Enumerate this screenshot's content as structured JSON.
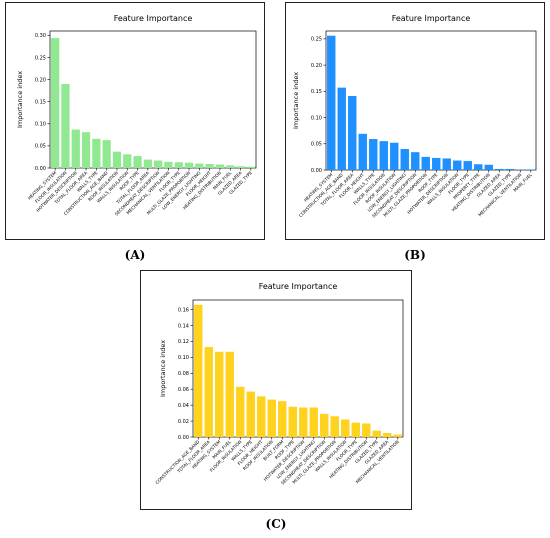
{
  "chart_data": [
    {
      "panel": "A",
      "type": "bar",
      "title": "Feature Importance",
      "ylabel": "Importance index",
      "color": "#90e890",
      "ylim": [
        0,
        0.31
      ],
      "yticks": [
        "0.00",
        "0.05",
        "0.10",
        "0.15",
        "0.20",
        "0.25",
        "0.30"
      ],
      "categories": [
        "HEATING_SYSTEM",
        "FLOOR_INSULATION",
        "HOTWATER_DESCRIPTION",
        "TOTAL_FLOOR_AREA",
        "WALLS_TYPE",
        "CONSTRUCTION_AGE_BAND",
        "ROOF_INSULATION",
        "WALLS_INSULATION",
        "ROOF_TYPE",
        "TOTAL_FLOOR_AREA",
        "SECONDHEAT_DESCRIPTION",
        "MECHANICAL_VENTILATION",
        "FLOOR_TYPE",
        "MULTI_GLAZE_PROPORTION",
        "LOW_ENERGY_LIGHTING",
        "FLOOR_HEIGHT",
        "HEATING_DISTRIBUTION",
        "MAIN_FUEL",
        "GLAZED_AREA",
        "GLAZED_TYPE"
      ],
      "values": [
        0.294,
        0.19,
        0.087,
        0.081,
        0.066,
        0.063,
        0.037,
        0.031,
        0.027,
        0.019,
        0.017,
        0.014,
        0.013,
        0.012,
        0.01,
        0.009,
        0.008,
        0.006,
        0.004,
        0.003
      ]
    },
    {
      "panel": "B",
      "type": "bar",
      "title": "Feature Importance",
      "ylabel": "Importance index",
      "color": "#1e90ff",
      "ylim": [
        0,
        0.265
      ],
      "yticks": [
        "0.00",
        "0.05",
        "0.10",
        "0.15",
        "0.20",
        "0.25"
      ],
      "categories": [
        "HEATING_SYSTEM",
        "CONSTRUCTION_AGE_BAND",
        "TOTAL_FLOOR_AREA",
        "FLOOR_HEIGHT",
        "WALLS_TYPE",
        "FLOOR_INSULATION",
        "ROOF_INSULATION",
        "LOW_ENERGY_LIGHTING",
        "SECONDHEAT_DESCRIPTION",
        "MULTI_GLAZE_PROPORTION",
        "ROOF_TYPE",
        "HOTWATER_DESCRIPTION",
        "WALLS_INSULATION",
        "FLOOR_TYPE",
        "PROPERTY_TYPE",
        "HEATING_DISTRIBUTION",
        "GLAZED_AREA",
        "GLAZED_TYPE",
        "MECHANICAL_VENTILATION",
        "MAIN_FUEL"
      ],
      "values": [
        0.256,
        0.157,
        0.141,
        0.069,
        0.059,
        0.055,
        0.052,
        0.04,
        0.034,
        0.025,
        0.023,
        0.022,
        0.018,
        0.017,
        0.011,
        0.01,
        0.002,
        0.002,
        0.001,
        0.001
      ]
    },
    {
      "panel": "C",
      "type": "bar",
      "title": "Feature Importance",
      "ylabel": "Importance index",
      "color": "#ffd21e",
      "ylim": [
        0,
        0.172
      ],
      "yticks": [
        "0.00",
        "0.02",
        "0.04",
        "0.06",
        "0.08",
        "0.10",
        "0.12",
        "0.14",
        "0.16"
      ],
      "categories": [
        "CONSTRUCTION_AGE_BAND",
        "TOTAL_FLOOR_AREA",
        "HEATING_SYSTEM",
        "MAIN_FUEL",
        "FLOOR_INSULATION",
        "WALLS_TYPE",
        "FLOOR_HEIGHT",
        "ROOF_INSULATION",
        "BUILT_FORM",
        "ROOF_TYPE",
        "HOTWATER_DESCRIPTION",
        "LOW_ENERGY_LIGHTING",
        "SECONDHEAT_DESCRIPTION",
        "MULTI_GLAZE_PROPORTION",
        "WALLS_INSULATION",
        "FLOOR_TYPE",
        "HEATING_DISTRIBUTION",
        "GLAZED_TYPE",
        "GLAZED_AREA",
        "MECHANICAL_VENTILATION"
      ],
      "values": [
        0.166,
        0.113,
        0.107,
        0.107,
        0.063,
        0.057,
        0.051,
        0.047,
        0.045,
        0.038,
        0.037,
        0.037,
        0.029,
        0.026,
        0.022,
        0.018,
        0.017,
        0.008,
        0.005,
        0.003
      ]
    }
  ],
  "captions": [
    "(A)",
    "(B)",
    "(C)"
  ]
}
